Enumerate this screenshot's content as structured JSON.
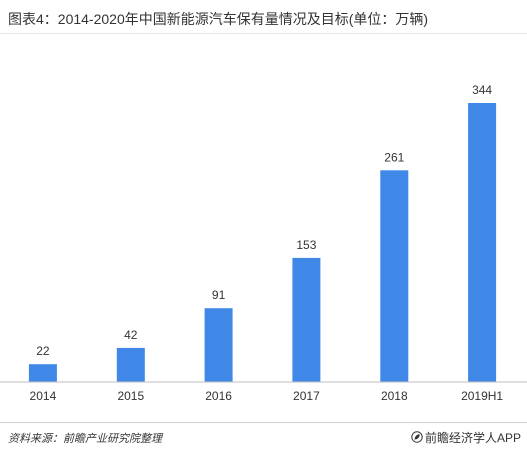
{
  "title": "图表4：2014-2020年中国新能源汽车保有量情况及目标(单位：万辆)",
  "chart_data": {
    "type": "bar",
    "categories": [
      "2014",
      "2015",
      "2016",
      "2017",
      "2018",
      "2019H1"
    ],
    "values": [
      22,
      42,
      91,
      153,
      261,
      344
    ],
    "ylim": [
      0,
      344
    ],
    "grid": false,
    "bar_color": "#3f88e8"
  },
  "source": "资料来源：前瞻产业研究院整理",
  "brand": "前瞻经济学人APP",
  "brand_icon": "leaf-icon"
}
